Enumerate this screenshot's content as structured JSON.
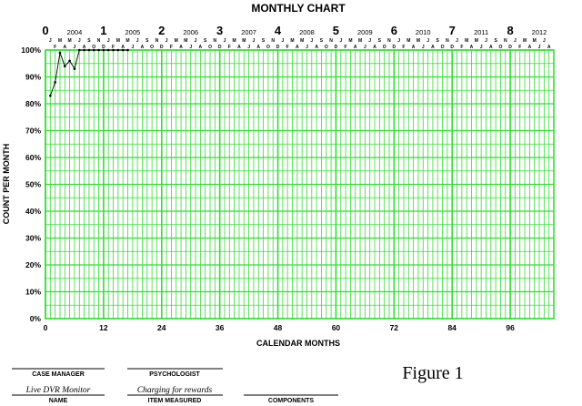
{
  "chart_data": {
    "type": "line",
    "title": "MONTHLY CHART",
    "xlabel": "CALENDAR MONTHS",
    "ylabel": "COUNT PER MONTH",
    "xlim": [
      0,
      105
    ],
    "ylim": [
      0,
      100
    ],
    "grid": true,
    "grid_color": "#33dd33",
    "line_color": "#000000",
    "x_ticks": [
      0,
      12,
      24,
      36,
      48,
      60,
      72,
      84,
      96
    ],
    "x_tick_labels": [
      "0",
      "12",
      "24",
      "36",
      "48",
      "60",
      "72",
      "84",
      "96"
    ],
    "y_ticks": [
      0,
      10,
      20,
      30,
      40,
      50,
      60,
      70,
      80,
      90,
      100
    ],
    "y_tick_labels": [
      "0%",
      "10%",
      "20%",
      "30%",
      "40%",
      "50%",
      "60%",
      "70%",
      "80%",
      "90%",
      "100%"
    ],
    "top_axis": {
      "year_numbers": [
        "0",
        "1",
        "2",
        "3",
        "4",
        "5",
        "6",
        "7",
        "8"
      ],
      "year_labels": [
        "2004",
        "2005",
        "2006",
        "2007",
        "2008",
        "2009",
        "2010",
        "2011",
        "2012"
      ],
      "month_row_1": [
        "J",
        "M",
        "M",
        "J",
        "S",
        "N"
      ],
      "month_row_2": [
        "F",
        "A",
        "J",
        "A",
        "O",
        "D"
      ]
    },
    "series": [
      {
        "x": [
          1,
          2,
          3,
          4,
          5,
          6,
          7,
          8,
          9,
          10,
          11,
          12,
          13,
          14,
          15,
          16,
          17
        ],
        "values": [
          83,
          88,
          99,
          94,
          96,
          93,
          100,
          100,
          100,
          100,
          100,
          100,
          100,
          100,
          100,
          100,
          100
        ]
      }
    ]
  },
  "footer": {
    "case_manager_label": "CASE MANAGER",
    "case_manager_value": "",
    "psychologist_label": "PSYCHOLOGIST",
    "psychologist_value": "",
    "name_label": "NAME",
    "name_value": "Live DVR Monitor",
    "item_label": "ITEM MEASURED",
    "item_value": "Charging for rewards",
    "components_label": "COMPONENTS",
    "components_value": ""
  },
  "figure_caption": "Figure 1"
}
